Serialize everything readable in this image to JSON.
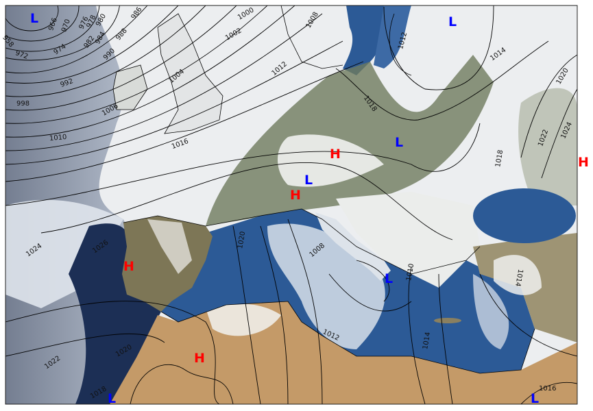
{
  "colors": {
    "high": "#ff0000",
    "low": "#0000ff",
    "sea": "#2c5a96",
    "land_desert": "#c49a68",
    "land_green": "#6f7a5e",
    "cloud": "#e8ecf1"
  },
  "centers": [
    "L",
    "L",
    "H",
    "L",
    "L",
    "H",
    "H",
    "H",
    "L",
    "H",
    "L",
    "L"
  ],
  "isobar_labels": [
    "958",
    "966",
    "970",
    "976",
    "978",
    "980",
    "986",
    "972",
    "974",
    "982",
    "984",
    "988",
    "990",
    "992",
    "998",
    "1004",
    "1006",
    "1010",
    "1016",
    "1000",
    "1002",
    "1008",
    "1012",
    "1012",
    "1014",
    "1018",
    "1020",
    "1024",
    "1022",
    "1018",
    "1024",
    "1026",
    "1020",
    "1008",
    "1010",
    "1012",
    "1014",
    "1014",
    "1016",
    "1018",
    "1022",
    "1020"
  ]
}
